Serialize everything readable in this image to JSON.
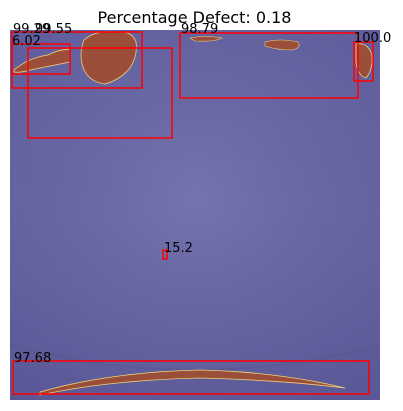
{
  "title": "Percentage Defect: 0.18",
  "colors": {
    "background_tint": "#6f6ca7",
    "defect_fill": "#9b4f3a",
    "defect_edge": "#f0d27a",
    "box_stroke": "#ff0000"
  },
  "detections": [
    {
      "label": "99.29",
      "class": "defect"
    },
    {
      "label": "99.55",
      "class": "defect"
    },
    {
      "label": "6.02",
      "class": "defect"
    },
    {
      "label": "98.79",
      "class": "defect"
    },
    {
      "label": "100.0",
      "class": "defect"
    },
    {
      "label": "15.2",
      "class": "defect"
    },
    {
      "label": "97.68",
      "class": "defect"
    }
  ]
}
